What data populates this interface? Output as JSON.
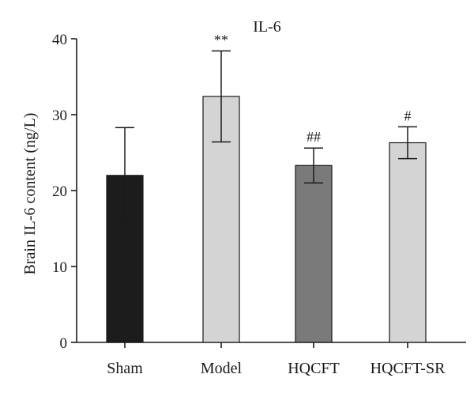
{
  "chart_data": {
    "type": "bar",
    "title": "IL-6",
    "xlabel": "",
    "ylabel": "Brain IL-6 content (ng/L)",
    "ylim": [
      0,
      40
    ],
    "yticks": [
      0,
      10,
      20,
      30,
      40
    ],
    "categories": [
      "Sham",
      "Model",
      "HQCFT",
      "HQCFT-SR"
    ],
    "values": [
      22,
      32.4,
      23.3,
      26.3
    ],
    "error": [
      6.3,
      6.0,
      2.3,
      2.1
    ],
    "annotations": [
      "",
      "**",
      "##",
      "#"
    ],
    "colors": [
      "#1c1c1c",
      "#d4d4d4",
      "#7a7a7a",
      "#d4d4d4"
    ],
    "grid": false
  }
}
